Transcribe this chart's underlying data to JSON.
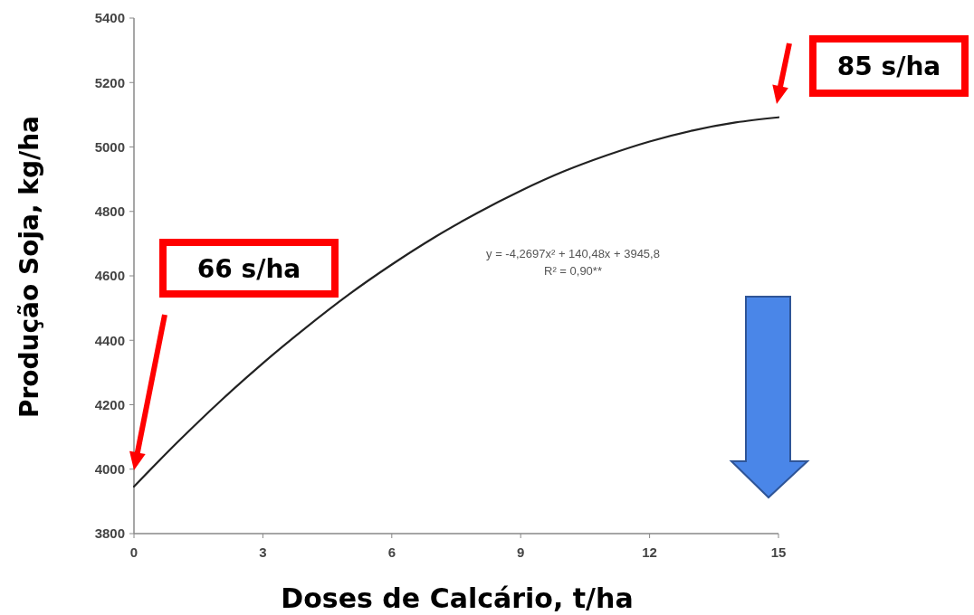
{
  "chart_data": {
    "type": "line",
    "xlabel": "Doses de Calcário, t/ha",
    "ylabel": "Produção Soja, kg/ha",
    "x": [
      0,
      1,
      2,
      3,
      4,
      5,
      6,
      7,
      8,
      9,
      10,
      11,
      12,
      13,
      14,
      15
    ],
    "series": [
      {
        "color": "#222222",
        "values": [
          3946,
          4082,
          4210,
          4329,
          4439,
          4542,
          4635,
          4720,
          4796,
          4864,
          4924,
          4974,
          5017,
          5051,
          5076,
          5092
        ]
      }
    ],
    "xlim": [
      0,
      15
    ],
    "xticks": [
      0,
      3,
      6,
      9,
      12,
      15
    ],
    "ylim": [
      3800,
      5400
    ],
    "yticks": [
      3800,
      4000,
      4200,
      4400,
      4600,
      4800,
      5000,
      5200,
      5400
    ],
    "grid": false,
    "annotations": [
      "66 s/ha",
      "85 s/ha",
      "y = -4,2697x² + 140,48x + 3945,8",
      "R² = 0,90**"
    ]
  }
}
